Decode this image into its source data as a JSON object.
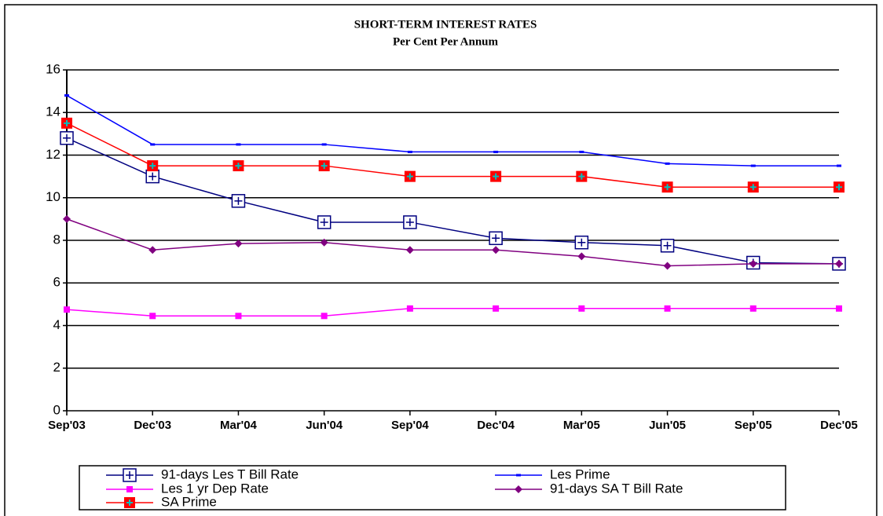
{
  "chart_data": {
    "type": "line",
    "title": "SHORT-TERM INTEREST RATES",
    "subtitle": "Per Cent Per Annum",
    "categories": [
      "Sep'03",
      "Dec'03",
      "Mar'04",
      "Jun'04",
      "Sep'04",
      "Dec'04",
      "Mar'05",
      "Jun'05",
      "Sep'05",
      "Dec'05"
    ],
    "series": [
      {
        "name": "91-days Les T Bill Rate",
        "color": "#000080",
        "values": [
          12.8,
          11.0,
          9.85,
          8.85,
          8.85,
          8.1,
          7.9,
          7.75,
          6.95,
          6.9
        ]
      },
      {
        "name": "Les  Prime",
        "color": "#0000ff",
        "values": [
          14.8,
          12.5,
          12.5,
          12.5,
          12.15,
          12.15,
          12.15,
          11.6,
          11.5,
          11.5
        ]
      },
      {
        "name": "Les 1 yr Dep Rate",
        "color": "#ff00ff",
        "values": [
          4.75,
          4.45,
          4.45,
          4.45,
          4.8,
          4.8,
          4.8,
          4.8,
          4.8,
          4.8
        ]
      },
      {
        "name": "91-days SA T Bill Rate",
        "color": "#800080",
        "values": [
          9.0,
          7.55,
          7.85,
          7.9,
          7.55,
          7.55,
          7.25,
          6.8,
          6.9,
          6.9
        ]
      },
      {
        "name": "SA Prime",
        "color": "#ff0000",
        "values": [
          13.5,
          11.5,
          11.5,
          11.5,
          11.0,
          11.0,
          11.0,
          10.5,
          10.5,
          10.5
        ]
      }
    ],
    "ylim": [
      0,
      16
    ],
    "yticks": [
      0,
      2,
      4,
      6,
      8,
      10,
      12,
      14,
      16
    ],
    "grid": true
  }
}
